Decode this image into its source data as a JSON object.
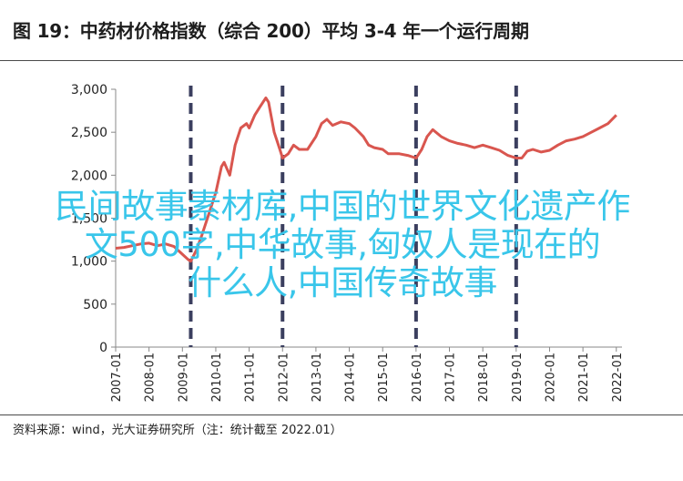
{
  "header": {
    "title": "图 19：中药材价格指数（综合 200）平均 3-4 年一个运行周期"
  },
  "footer": {
    "source": "资料来源：wind，光大证券研究所（注：统计截至 2022.01）"
  },
  "overlay": {
    "line1": "民间故事素材库,中国的世界文化遗产作",
    "line2": "文500字,中华故事,匈奴人是现在的",
    "line3": "什么人,中国传奇故事"
  },
  "colors": {
    "series": "#d9564f",
    "cycle_lines": "#3b3f5f",
    "overlay_text": "#39c6ea"
  },
  "chart_data": {
    "type": "line",
    "title": "图 19：中药材价格指数（综合 200）平均 3-4 年一个运行周期",
    "xlabel": "",
    "ylabel": "",
    "ylim": [
      0,
      3000
    ],
    "yticks": [
      "0",
      "500",
      "1,000",
      "1,500",
      "2,000",
      "2,500",
      "3,000"
    ],
    "ytick_values": [
      0,
      500,
      1000,
      1500,
      2000,
      2500,
      3000
    ],
    "xticks": [
      "2007-01",
      "2008-01",
      "2009-01",
      "2010-01",
      "2011-01",
      "2012-01",
      "2013-01",
      "2014-01",
      "2015-01",
      "2016-01",
      "2017-01",
      "2018-01",
      "2019-01",
      "2020-01",
      "2021-01",
      "2022-01"
    ],
    "xtick_dates": [
      2007,
      2008,
      2009,
      2010,
      2011,
      2012,
      2013,
      2014,
      2015,
      2016,
      2017,
      2018,
      2019,
      2020,
      2021,
      2022
    ],
    "xticks_skipped": [
      "2009-04",
      "2011-07",
      "2012-04",
      "2019-04"
    ],
    "grid": false,
    "cycle_markers": [
      {
        "date": "2009-04",
        "x": 2009.25
      },
      {
        "date": "2012-01",
        "x": 2012.0
      },
      {
        "date": "2016-01",
        "x": 2016.0
      },
      {
        "date": "2019-01",
        "x": 2019.0
      }
    ],
    "series": [
      {
        "color": "#d9564f",
        "points": [
          [
            2007.0,
            1150
          ],
          [
            2007.25,
            1160
          ],
          [
            2007.5,
            1180
          ],
          [
            2007.75,
            1200
          ],
          [
            2008.0,
            1210
          ],
          [
            2008.25,
            1180
          ],
          [
            2008.5,
            1200
          ],
          [
            2008.75,
            1170
          ],
          [
            2009.0,
            1080
          ],
          [
            2009.17,
            1020
          ],
          [
            2009.25,
            1000
          ],
          [
            2009.42,
            1130
          ],
          [
            2009.58,
            1300
          ],
          [
            2009.75,
            1500
          ],
          [
            2010.0,
            1800
          ],
          [
            2010.17,
            2100
          ],
          [
            2010.25,
            2150
          ],
          [
            2010.42,
            2000
          ],
          [
            2010.58,
            2350
          ],
          [
            2010.75,
            2550
          ],
          [
            2010.92,
            2600
          ],
          [
            2011.0,
            2550
          ],
          [
            2011.17,
            2700
          ],
          [
            2011.33,
            2800
          ],
          [
            2011.5,
            2900
          ],
          [
            2011.58,
            2850
          ],
          [
            2011.75,
            2500
          ],
          [
            2011.92,
            2300
          ],
          [
            2012.0,
            2200
          ],
          [
            2012.17,
            2250
          ],
          [
            2012.33,
            2350
          ],
          [
            2012.5,
            2300
          ],
          [
            2012.75,
            2300
          ],
          [
            2013.0,
            2450
          ],
          [
            2013.17,
            2600
          ],
          [
            2013.33,
            2650
          ],
          [
            2013.5,
            2580
          ],
          [
            2013.75,
            2620
          ],
          [
            2014.0,
            2600
          ],
          [
            2014.17,
            2550
          ],
          [
            2014.42,
            2450
          ],
          [
            2014.58,
            2350
          ],
          [
            2014.75,
            2320
          ],
          [
            2015.0,
            2300
          ],
          [
            2015.17,
            2250
          ],
          [
            2015.5,
            2250
          ],
          [
            2015.75,
            2230
          ],
          [
            2016.0,
            2200
          ],
          [
            2016.17,
            2300
          ],
          [
            2016.33,
            2450
          ],
          [
            2016.5,
            2530
          ],
          [
            2016.75,
            2450
          ],
          [
            2017.0,
            2400
          ],
          [
            2017.25,
            2370
          ],
          [
            2017.5,
            2350
          ],
          [
            2017.75,
            2320
          ],
          [
            2018.0,
            2350
          ],
          [
            2018.25,
            2320
          ],
          [
            2018.5,
            2290
          ],
          [
            2018.75,
            2230
          ],
          [
            2019.0,
            2200
          ],
          [
            2019.17,
            2200
          ],
          [
            2019.33,
            2280
          ],
          [
            2019.5,
            2300
          ],
          [
            2019.75,
            2270
          ],
          [
            2020.0,
            2290
          ],
          [
            2020.25,
            2350
          ],
          [
            2020.5,
            2400
          ],
          [
            2020.75,
            2420
          ],
          [
            2021.0,
            2450
          ],
          [
            2021.25,
            2500
          ],
          [
            2021.5,
            2550
          ],
          [
            2021.75,
            2600
          ],
          [
            2022.0,
            2700
          ]
        ]
      }
    ]
  }
}
